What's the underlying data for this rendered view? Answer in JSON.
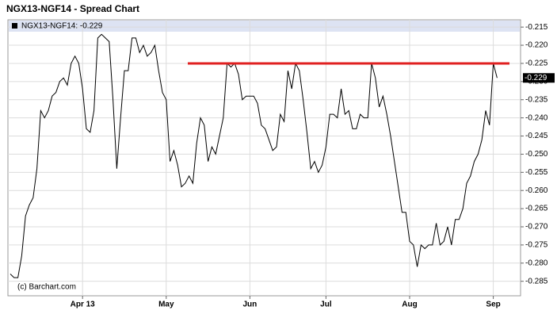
{
  "chart_data": {
    "type": "line",
    "title": "NGX13-NGF14 - Spread Chart",
    "legend_text": "NGX13-NGF14: -0.229",
    "credit": "(c) Barchart.com",
    "color": "#000000",
    "grid": true,
    "categories": [
      null,
      null,
      null,
      null,
      null,
      null,
      null,
      null,
      null,
      null,
      null,
      null,
      null,
      null,
      null,
      null,
      null,
      null,
      null,
      "Apr 13",
      null,
      null,
      null,
      null,
      null,
      null,
      null,
      null,
      null,
      null,
      null,
      null,
      null,
      null,
      null,
      null,
      null,
      null,
      null,
      null,
      null,
      "May",
      null,
      null,
      null,
      null,
      null,
      null,
      null,
      null,
      null,
      null,
      null,
      null,
      null,
      null,
      null,
      null,
      null,
      null,
      null,
      null,
      null,
      "Jun",
      null,
      null,
      null,
      null,
      null,
      null,
      null,
      null,
      null,
      null,
      null,
      null,
      null,
      null,
      null,
      null,
      null,
      null,
      null,
      "Jul",
      null,
      null,
      null,
      null,
      null,
      null,
      null,
      null,
      null,
      null,
      null,
      null,
      null,
      null,
      null,
      null,
      null,
      null,
      null,
      null,
      null,
      "Aug",
      null,
      null,
      null,
      null,
      null,
      null,
      null,
      null,
      null,
      null,
      null,
      null,
      null,
      null,
      null,
      null,
      null,
      null,
      null,
      null,
      null,
      "Sep",
      null
    ],
    "values": [
      -0.283,
      -0.284,
      -0.284,
      -0.278,
      -0.267,
      -0.264,
      -0.262,
      -0.254,
      -0.238,
      -0.24,
      -0.238,
      -0.234,
      -0.233,
      -0.23,
      -0.229,
      -0.231,
      -0.225,
      -0.223,
      -0.225,
      -0.232,
      -0.243,
      -0.244,
      -0.238,
      -0.218,
      -0.217,
      -0.218,
      -0.219,
      -0.235,
      -0.254,
      -0.24,
      -0.227,
      -0.227,
      -0.218,
      -0.218,
      -0.222,
      -0.22,
      -0.223,
      -0.222,
      -0.22,
      -0.227,
      -0.233,
      -0.235,
      -0.252,
      -0.249,
      -0.253,
      -0.259,
      -0.258,
      -0.256,
      -0.258,
      -0.247,
      -0.24,
      -0.242,
      -0.252,
      -0.248,
      -0.25,
      -0.245,
      -0.24,
      -0.225,
      -0.226,
      -0.225,
      -0.228,
      -0.235,
      -0.234,
      -0.234,
      -0.234,
      -0.236,
      -0.242,
      -0.243,
      -0.246,
      -0.249,
      -0.248,
      -0.239,
      -0.241,
      -0.227,
      -0.232,
      -0.225,
      -0.227,
      -0.235,
      -0.244,
      -0.254,
      -0.252,
      -0.255,
      -0.253,
      -0.248,
      -0.239,
      -0.239,
      -0.24,
      -0.232,
      -0.239,
      -0.238,
      -0.243,
      -0.243,
      -0.239,
      -0.24,
      -0.24,
      -0.225,
      -0.229,
      -0.237,
      -0.234,
      -0.239,
      -0.245,
      -0.252,
      -0.259,
      -0.266,
      -0.266,
      -0.274,
      -0.275,
      -0.281,
      -0.275,
      -0.276,
      -0.275,
      -0.275,
      -0.269,
      -0.275,
      -0.274,
      -0.27,
      -0.275,
      -0.268,
      -0.268,
      -0.265,
      -0.258,
      -0.256,
      -0.252,
      -0.25,
      -0.246,
      -0.238,
      -0.242,
      -0.225,
      -0.229
    ],
    "last_value": -0.229,
    "reference_line": {
      "value": -0.225,
      "color": "#e02020"
    },
    "ylim": [
      -0.289,
      -0.213
    ],
    "yticks": [
      -0.215,
      {
        "value": -0.22,
        "label": "-0.220"
      },
      -0.225,
      {
        "value": -0.23,
        "label": "-0.230"
      },
      -0.235,
      {
        "value": -0.24,
        "label": "-0.240"
      },
      -0.245,
      {
        "value": -0.25,
        "label": "-0.250"
      },
      -0.255,
      {
        "value": -0.26,
        "label": "-0.260"
      },
      -0.265,
      {
        "value": -0.27,
        "label": "-0.270"
      },
      -0.275,
      {
        "value": -0.28,
        "label": "-0.280"
      },
      -0.285
    ]
  }
}
